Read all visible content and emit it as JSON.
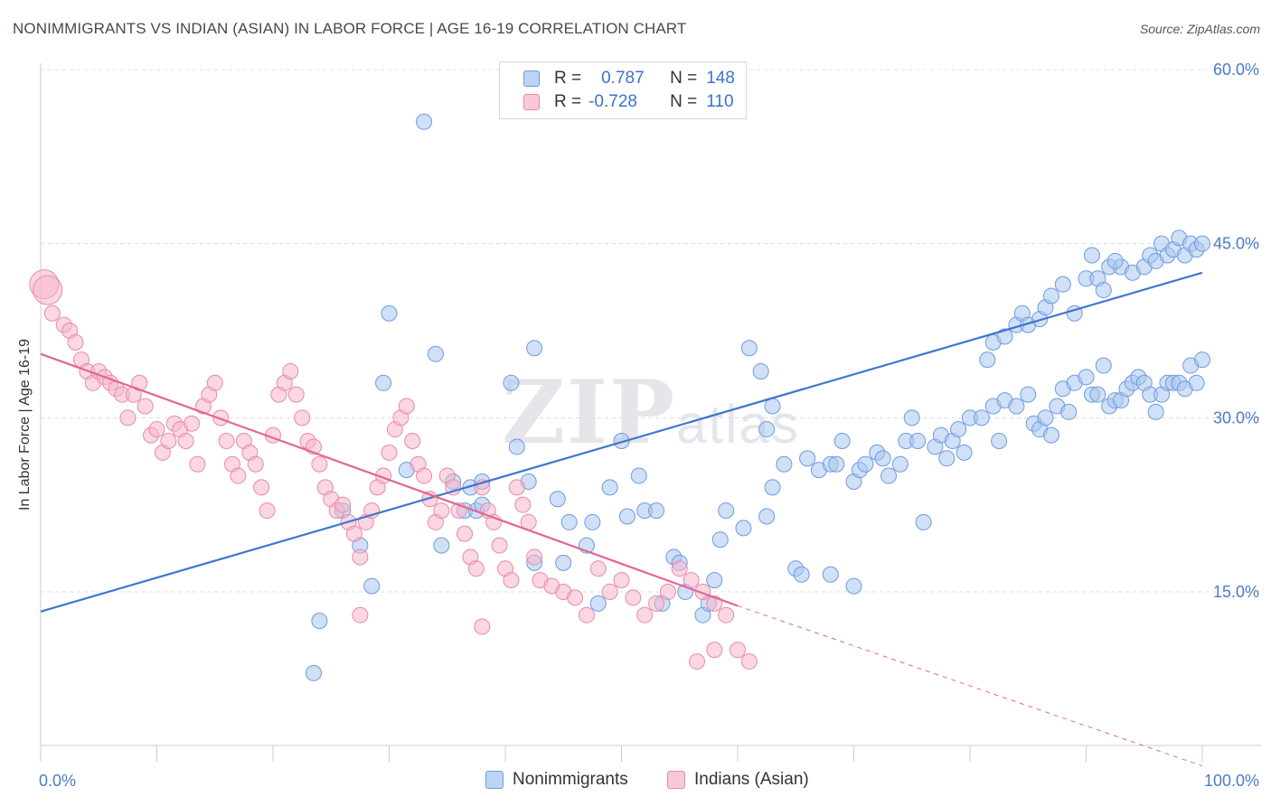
{
  "title": "NONIMMIGRANTS VS INDIAN (ASIAN) IN LABOR FORCE | AGE 16-19 CORRELATION CHART",
  "source": "Source: ZipAtlas.com",
  "watermark": "ZIPatlas",
  "legend": {
    "rows": [
      {
        "r_label": "R =",
        "r_value": "0.787",
        "n_label": "N =",
        "n_value": "148",
        "color": "#a9c6ef"
      },
      {
        "r_label": "R =",
        "r_value": "-0.728",
        "n_label": "N =",
        "n_value": "110",
        "color": "#f5b6ca"
      }
    ]
  },
  "bottom_legend": [
    {
      "label": "Nonimmigrants",
      "color": "#a9c6ef"
    },
    {
      "label": "Indians (Asian)",
      "color": "#f5b6ca"
    }
  ],
  "chart_data": {
    "type": "scatter",
    "ylabel": "In Labor Force | Age 16-19",
    "xlim": [
      0,
      100
    ],
    "ylim": [
      0,
      65
    ],
    "x_tick_labels": [
      "0.0%",
      "100.0%"
    ],
    "y_ticks": [
      15,
      30,
      45,
      60
    ],
    "y_tick_labels": [
      "15.0%",
      "30.0%",
      "45.0%",
      "60.0%"
    ],
    "grid": true,
    "series": [
      {
        "name": "Nonimmigrants",
        "color": "#a9c6ef",
        "stroke": "#6d9be0",
        "trend": {
          "color": "#3f76cf",
          "x": [
            0,
            100
          ],
          "y": [
            13.3,
            42.5
          ]
        },
        "points": [
          [
            24,
            12.5
          ],
          [
            23.5,
            8
          ],
          [
            27.5,
            19
          ],
          [
            30,
            39
          ],
          [
            29.5,
            33
          ],
          [
            34,
            35.5
          ],
          [
            35.5,
            24.5
          ],
          [
            36.5,
            22
          ],
          [
            37,
            24
          ],
          [
            37.5,
            22
          ],
          [
            38,
            24.5
          ],
          [
            40.5,
            33
          ],
          [
            41,
            27.5
          ],
          [
            42,
            24.5
          ],
          [
            42.5,
            17.5
          ],
          [
            44.5,
            23
          ],
          [
            45,
            17.5
          ],
          [
            45.5,
            21
          ],
          [
            47.5,
            21
          ],
          [
            48,
            14
          ],
          [
            49,
            24
          ],
          [
            50,
            28
          ],
          [
            50.5,
            21.5
          ],
          [
            51.5,
            25
          ],
          [
            52,
            22
          ],
          [
            53,
            22
          ],
          [
            53.5,
            14
          ],
          [
            54.5,
            18
          ],
          [
            55,
            17.5
          ],
          [
            55.5,
            15
          ],
          [
            57,
            13
          ],
          [
            57.5,
            14
          ],
          [
            58,
            16
          ],
          [
            58.5,
            19.5
          ],
          [
            59,
            22
          ],
          [
            60.5,
            20.5
          ],
          [
            61,
            36
          ],
          [
            62,
            34
          ],
          [
            62.5,
            29
          ],
          [
            63,
            31
          ],
          [
            63,
            24
          ],
          [
            64,
            26
          ],
          [
            65,
            17
          ],
          [
            65.5,
            16.5
          ],
          [
            66,
            26.5
          ],
          [
            67,
            25.5
          ],
          [
            68,
            16.5
          ],
          [
            68,
            26
          ],
          [
            68.5,
            26
          ],
          [
            69,
            28
          ],
          [
            70,
            15.5
          ],
          [
            70,
            24.5
          ],
          [
            70.5,
            25.5
          ],
          [
            71,
            26
          ],
          [
            72,
            27
          ],
          [
            72.5,
            26.5
          ],
          [
            73,
            25
          ],
          [
            74,
            26
          ],
          [
            74.5,
            28
          ],
          [
            75,
            30
          ],
          [
            75.5,
            28
          ],
          [
            76,
            21
          ],
          [
            77,
            27.5
          ],
          [
            77.5,
            28.5
          ],
          [
            78,
            26.5
          ],
          [
            78.5,
            28
          ],
          [
            79,
            29
          ],
          [
            79.5,
            27
          ],
          [
            80,
            30
          ],
          [
            81,
            30
          ],
          [
            82,
            31
          ],
          [
            82.5,
            28
          ],
          [
            83,
            31.5
          ],
          [
            84,
            31
          ],
          [
            85,
            32
          ],
          [
            85.5,
            29.5
          ],
          [
            86,
            29
          ],
          [
            86.5,
            30
          ],
          [
            87,
            28.5
          ],
          [
            87.5,
            31
          ],
          [
            88,
            32.5
          ],
          [
            88.5,
            30.5
          ],
          [
            89,
            33
          ],
          [
            90,
            33.5
          ],
          [
            90.5,
            32
          ],
          [
            91,
            32
          ],
          [
            91.5,
            34.5
          ],
          [
            92,
            31
          ],
          [
            92.5,
            31.5
          ],
          [
            93,
            31.5
          ],
          [
            93.5,
            32.5
          ],
          [
            94,
            33
          ],
          [
            94.5,
            33.5
          ],
          [
            95,
            33
          ],
          [
            95.5,
            32
          ],
          [
            96,
            30.5
          ],
          [
            96.5,
            32
          ],
          [
            97,
            33
          ],
          [
            97.5,
            33
          ],
          [
            98,
            33
          ],
          [
            98.5,
            32.5
          ],
          [
            99,
            34.5
          ],
          [
            99.5,
            33
          ],
          [
            100,
            35
          ],
          [
            81.5,
            35
          ],
          [
            82,
            36.5
          ],
          [
            83,
            37
          ],
          [
            84,
            38
          ],
          [
            84.5,
            39
          ],
          [
            85,
            38
          ],
          [
            86,
            38.5
          ],
          [
            86.5,
            39.5
          ],
          [
            87,
            40.5
          ],
          [
            88,
            41.5
          ],
          [
            89,
            39
          ],
          [
            90,
            42
          ],
          [
            91,
            42
          ],
          [
            91.5,
            41
          ],
          [
            92,
            43
          ],
          [
            93,
            43
          ],
          [
            94,
            42.5
          ],
          [
            95,
            43
          ],
          [
            95.5,
            44
          ],
          [
            96,
            43.5
          ],
          [
            96.5,
            45
          ],
          [
            97,
            44
          ],
          [
            97.5,
            44.5
          ],
          [
            98,
            45.5
          ],
          [
            98.5,
            44
          ],
          [
            99,
            45
          ],
          [
            99.5,
            44.5
          ],
          [
            100,
            45
          ],
          [
            92.5,
            43.5
          ],
          [
            90.5,
            44
          ],
          [
            33,
            55.5
          ],
          [
            42.5,
            36
          ],
          [
            31.5,
            25.5
          ],
          [
            38,
            22.5
          ],
          [
            62.5,
            21.5
          ],
          [
            26,
            22
          ],
          [
            34.5,
            19
          ],
          [
            47,
            19
          ],
          [
            28.5,
            15.5
          ]
        ]
      },
      {
        "name": "Indians (Asian)",
        "color": "#f5b6ca",
        "stroke": "#e98aa8",
        "trend": {
          "color": "#e2678f",
          "x": [
            0,
            60
          ],
          "y": [
            35.5,
            13.8
          ]
        },
        "trend_dash": {
          "x": [
            60,
            100
          ],
          "y": [
            13.8,
            0
          ]
        },
        "points": [
          [
            0.3,
            41.5
          ],
          [
            0.6,
            41
          ],
          [
            1,
            39
          ],
          [
            2,
            38
          ],
          [
            2.5,
            37.5
          ],
          [
            3,
            36.5
          ],
          [
            3.5,
            35
          ],
          [
            4,
            34
          ],
          [
            4.5,
            33
          ],
          [
            5,
            34
          ],
          [
            5.5,
            33.5
          ],
          [
            6,
            33
          ],
          [
            6.5,
            32.5
          ],
          [
            7,
            32
          ],
          [
            7.5,
            30
          ],
          [
            8,
            32
          ],
          [
            8.5,
            33
          ],
          [
            9,
            31
          ],
          [
            9.5,
            28.5
          ],
          [
            10,
            29
          ],
          [
            10.5,
            27
          ],
          [
            11,
            28
          ],
          [
            11.5,
            29.5
          ],
          [
            12,
            29
          ],
          [
            12.5,
            28
          ],
          [
            13,
            29.5
          ],
          [
            13.5,
            26
          ],
          [
            14,
            31
          ],
          [
            14.5,
            32
          ],
          [
            15,
            33
          ],
          [
            15.5,
            30
          ],
          [
            16,
            28
          ],
          [
            16.5,
            26
          ],
          [
            17,
            25
          ],
          [
            17.5,
            28
          ],
          [
            18,
            27
          ],
          [
            18.5,
            26
          ],
          [
            19,
            24
          ],
          [
            19.5,
            22
          ],
          [
            20,
            28.5
          ],
          [
            20.5,
            32
          ],
          [
            21,
            33
          ],
          [
            21.5,
            34
          ],
          [
            22,
            32
          ],
          [
            22.5,
            30
          ],
          [
            23,
            28
          ],
          [
            23.5,
            27.5
          ],
          [
            24,
            26
          ],
          [
            24.5,
            24
          ],
          [
            25,
            23
          ],
          [
            25.5,
            22
          ],
          [
            26,
            22.5
          ],
          [
            26.5,
            21
          ],
          [
            27,
            20
          ],
          [
            27.5,
            18
          ],
          [
            28,
            21
          ],
          [
            28.5,
            22
          ],
          [
            29,
            24
          ],
          [
            29.5,
            25
          ],
          [
            30,
            27
          ],
          [
            30.5,
            29
          ],
          [
            31,
            30
          ],
          [
            31.5,
            31
          ],
          [
            32,
            28
          ],
          [
            32.5,
            26
          ],
          [
            33,
            25
          ],
          [
            33.5,
            23
          ],
          [
            34,
            21
          ],
          [
            34.5,
            22
          ],
          [
            35,
            25
          ],
          [
            35.5,
            24
          ],
          [
            36,
            22
          ],
          [
            36.5,
            20
          ],
          [
            37,
            18
          ],
          [
            37.5,
            17
          ],
          [
            38,
            24
          ],
          [
            38.5,
            22
          ],
          [
            39,
            21
          ],
          [
            39.5,
            19
          ],
          [
            40,
            17
          ],
          [
            40.5,
            16
          ],
          [
            41,
            24
          ],
          [
            41.5,
            22.5
          ],
          [
            42,
            21
          ],
          [
            42.5,
            18
          ],
          [
            43,
            16
          ],
          [
            44,
            15.5
          ],
          [
            45,
            15
          ],
          [
            46,
            14.5
          ],
          [
            47,
            13
          ],
          [
            48,
            17
          ],
          [
            49,
            15
          ],
          [
            50,
            16
          ],
          [
            51,
            14.5
          ],
          [
            52,
            13
          ],
          [
            53,
            14
          ],
          [
            54,
            15
          ],
          [
            55,
            17
          ],
          [
            56,
            16
          ],
          [
            57,
            15
          ],
          [
            58,
            14
          ],
          [
            59,
            13
          ],
          [
            60,
            10
          ],
          [
            61,
            9
          ],
          [
            27.5,
            13
          ],
          [
            38,
            12
          ],
          [
            56.5,
            9
          ],
          [
            58,
            10
          ]
        ]
      }
    ]
  }
}
